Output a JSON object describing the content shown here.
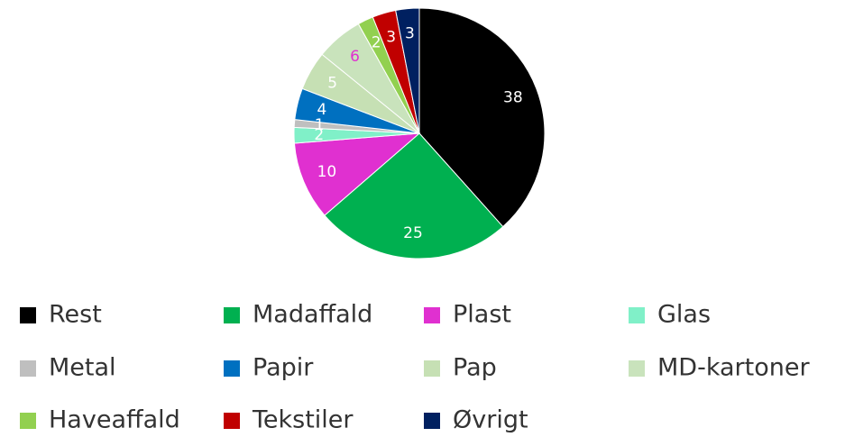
{
  "chart_data": {
    "type": "pie",
    "categories": [
      "Rest",
      "Madaffald",
      "Plast",
      "Glas",
      "Metal",
      "Papir",
      "Pap",
      "MD-kartoner",
      "Haveaffald",
      "Tekstiler",
      "Øvrigt"
    ],
    "values": [
      38,
      25,
      10,
      2,
      1,
      4,
      5,
      6,
      2,
      3,
      3
    ],
    "colors": [
      "#000000",
      "#00b050",
      "#e030d0",
      "#80f0c8",
      "#bfbfbf",
      "#0070c0",
      "#c6e0b4",
      "#c9e3bc",
      "#92d050",
      "#c00000",
      "#002060"
    ],
    "label_colors": [
      "#ffffff",
      "#ffffff",
      "#ffffff",
      "#ffffff",
      "#ffffff",
      "#ffffff",
      "#ffffff",
      "#e030d0",
      "#ffffff",
      "#ffffff",
      "#ffffff"
    ],
    "legend": "bottom"
  }
}
